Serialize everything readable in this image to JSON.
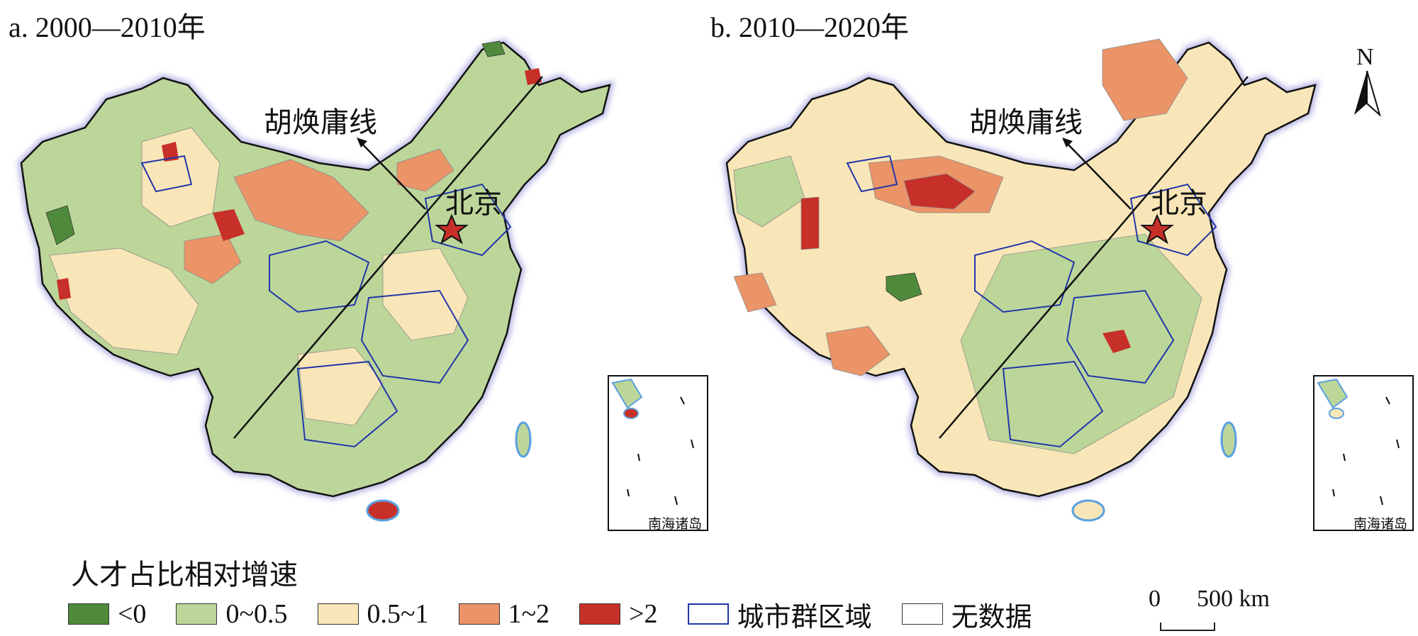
{
  "panels": [
    {
      "title": "a. 2000—2010年",
      "hu_line_label": "胡焕庸线",
      "beijing_label": "北京",
      "inset_label": "南海诸岛"
    },
    {
      "title": "b. 2010—2020年",
      "hu_line_label": "胡焕庸线",
      "beijing_label": "北京",
      "inset_label": "南海诸岛"
    }
  ],
  "legend": {
    "title": "人才占比相对增速",
    "items": [
      {
        "label": "<0",
        "color": "#4f8a3c",
        "type": "fill"
      },
      {
        "label": "0~0.5",
        "color": "#bcd69a",
        "type": "fill"
      },
      {
        "label": "0.5~1",
        "color": "#f9e6b8",
        "type": "fill"
      },
      {
        "label": "1~2",
        "color": "#ea9468",
        "type": "fill"
      },
      {
        "label": ">2",
        "color": "#c73028",
        "type": "fill"
      },
      {
        "label": "城市群区域",
        "color": "#2036a8",
        "type": "outline"
      },
      {
        "label": "无数据",
        "color": "#ffffff",
        "type": "outline"
      }
    ]
  },
  "scale_bar": {
    "zero": "0",
    "value": "500 km"
  },
  "north_arrow": {
    "label": "N"
  },
  "colors": {
    "negative": "#4f8a3c",
    "low": "#bcd69a",
    "mid": "#f9e6b8",
    "high": "#ea9468",
    "very_high": "#c73028",
    "city_cluster_outline": "#2036a8",
    "coast": "#5aa0e0"
  }
}
